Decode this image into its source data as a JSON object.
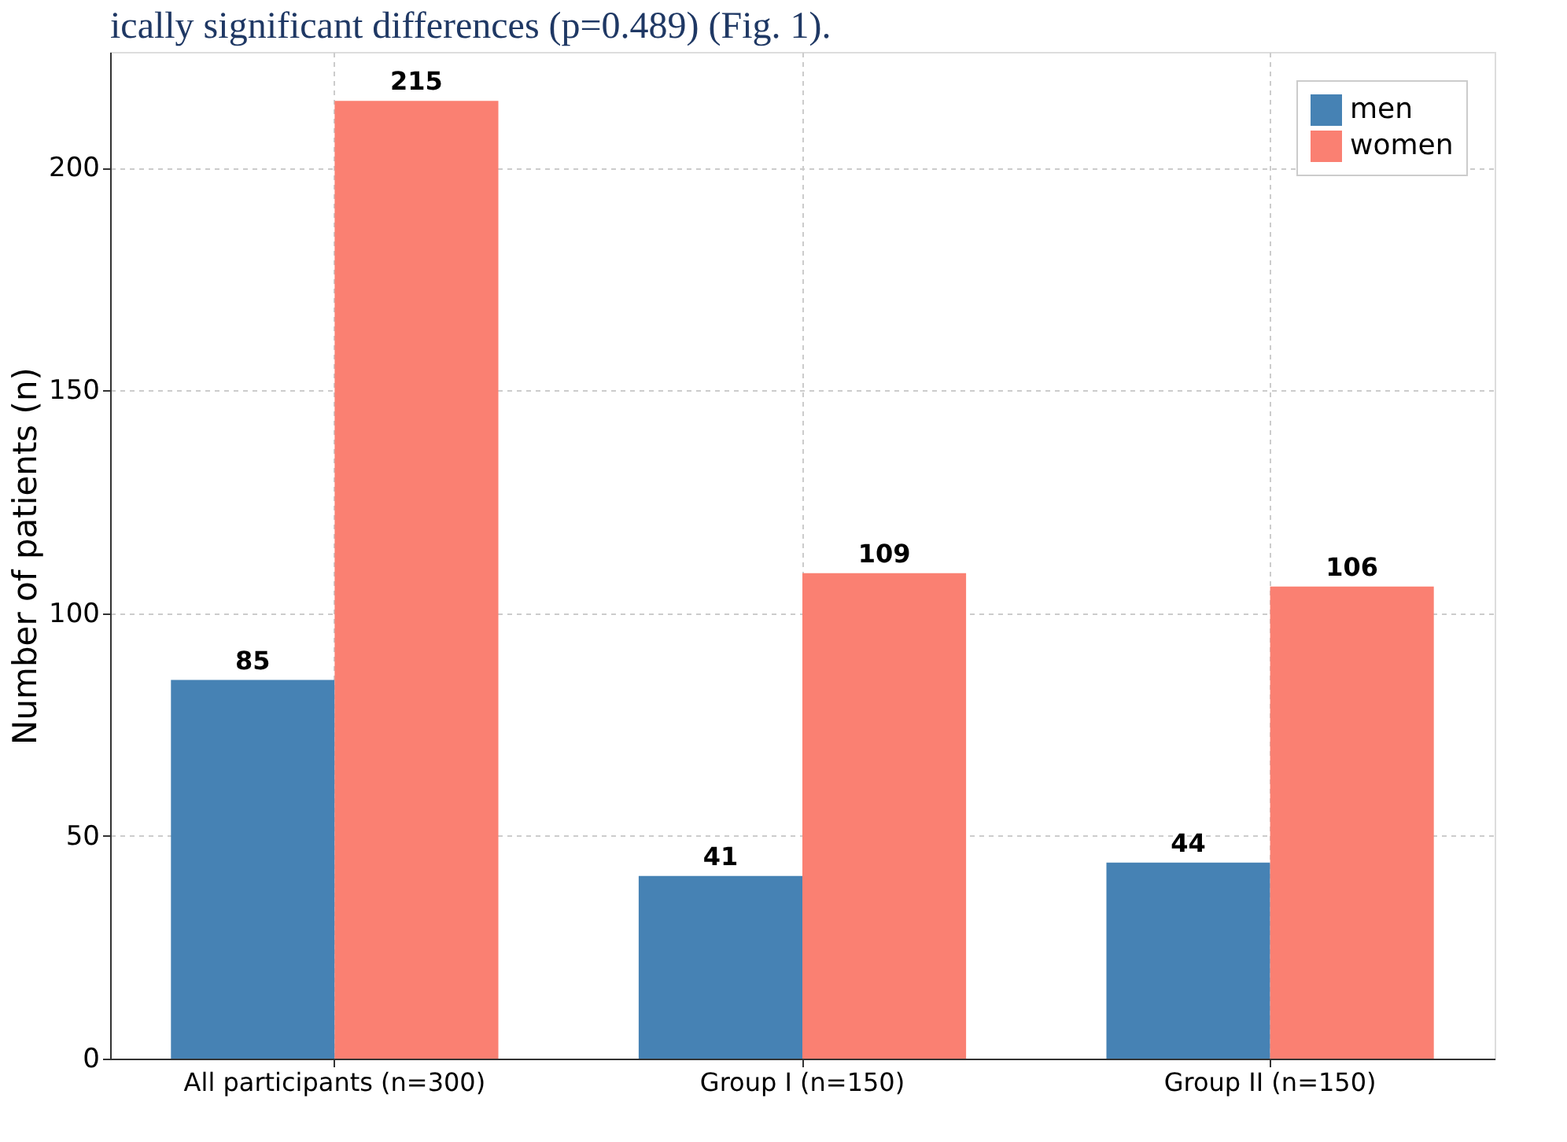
{
  "chart_data": {
    "type": "bar",
    "ylabel": "Number of patients (n)",
    "annotations": [
      "ically significant differences (p=0.489) (Fig. 1)."
    ],
    "categories": [
      "All participants (n=300)",
      "Group I (n=150)",
      "Group II (n=150)"
    ],
    "series": [
      {
        "name": "men",
        "color": "#4682b4",
        "values": [
          85,
          41,
          44
        ]
      },
      {
        "name": "women",
        "color": "#fa8072",
        "values": [
          215,
          109,
          106
        ]
      }
    ],
    "ylim": [
      0,
      226
    ],
    "yticks": [
      0,
      50,
      100,
      150,
      200
    ],
    "grid": true,
    "legend": "top right",
    "data_labels": true
  }
}
